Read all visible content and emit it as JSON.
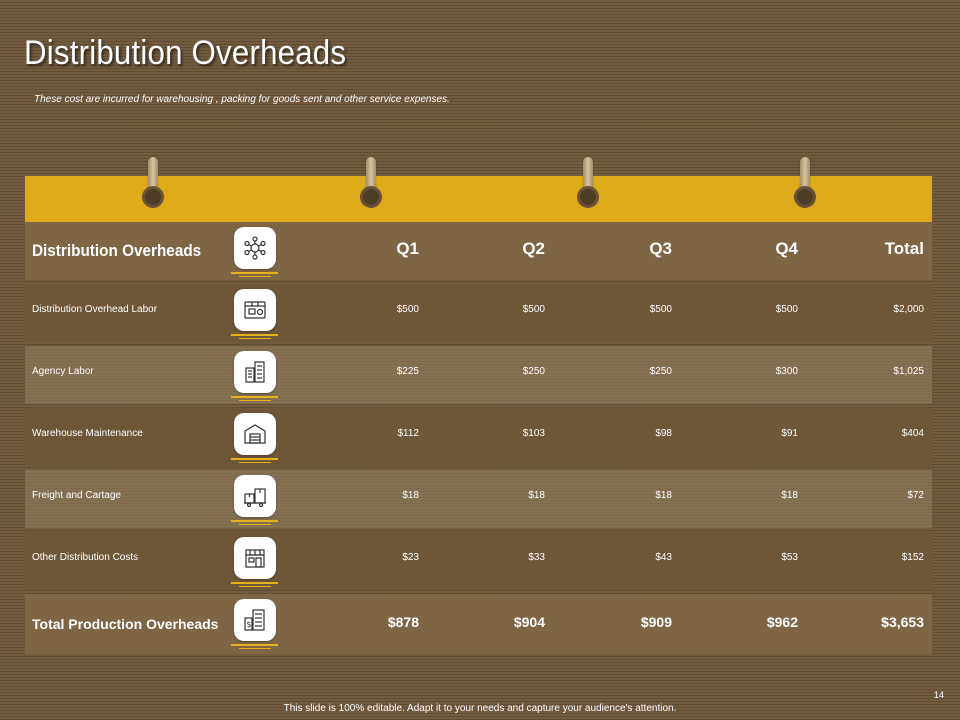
{
  "slide": {
    "title": "Distribution Overheads",
    "subtitle": "These cost are incurred for warehousing , packing for goods sent and other service expenses.",
    "footer": "This slide is 100% editable. Adapt it to your needs and capture your audience's attention.",
    "page_number": "14"
  },
  "colors": {
    "background": "#6e5638",
    "accent_bar": "#deaa1a",
    "icon_underline": "#e3b21e"
  },
  "table": {
    "header": {
      "label": "Distribution Overheads",
      "icon": "network-nodes-icon",
      "cols": [
        "Q1",
        "Q2",
        "Q3",
        "Q4",
        "Total"
      ]
    },
    "rows": [
      {
        "label": "Distribution Overhead Labor",
        "icon": "conveyor-machine-icon",
        "values": [
          "$500",
          "$500",
          "$500",
          "$500",
          "$2,000"
        ]
      },
      {
        "label": "Agency Labor",
        "icon": "office-buildings-icon",
        "values": [
          "$225",
          "$250",
          "$250",
          "$300",
          "$1,025"
        ]
      },
      {
        "label": "Warehouse Maintenance",
        "icon": "warehouse-icon",
        "values": [
          "$112",
          "$103",
          "$98",
          "$91",
          "$404"
        ]
      },
      {
        "label": "Freight and Cartage",
        "icon": "cargo-boxes-icon",
        "values": [
          "$18",
          "$18",
          "$18",
          "$18",
          "$72"
        ]
      },
      {
        "label": "Other Distribution Costs",
        "icon": "storefront-icon",
        "values": [
          "$23",
          "$33",
          "$43",
          "$53",
          "$152"
        ]
      }
    ],
    "total": {
      "label": "Total Production Overheads",
      "icon": "dollar-building-icon",
      "values": [
        "$878",
        "$904",
        "$909",
        "$962",
        "$3,653"
      ]
    }
  }
}
